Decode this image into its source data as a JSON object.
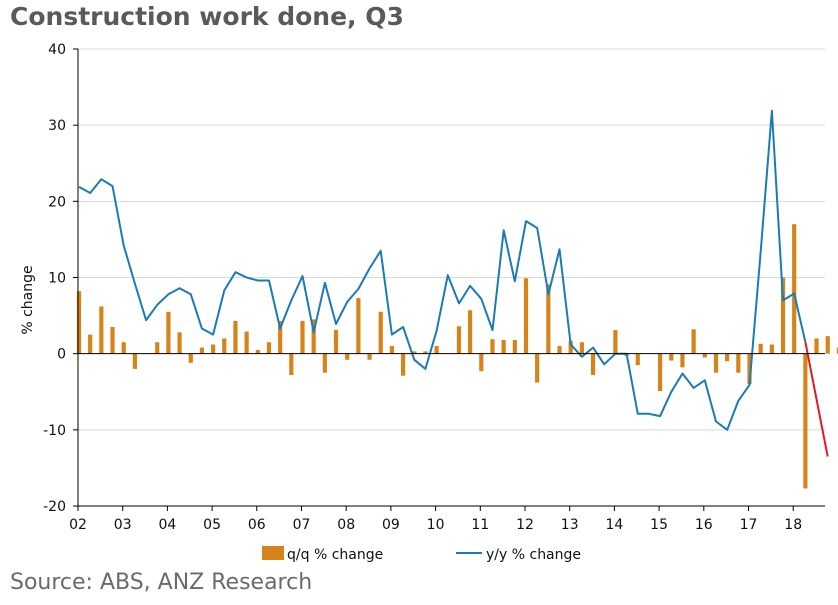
{
  "page": {
    "title": "Construction work done, Q3",
    "source": "Source: ABS, ANZ Research"
  },
  "colors": {
    "bars": "#d6841a",
    "line": "#1c7ab5",
    "projection": "#e11b22",
    "grid": "#d9d9d9",
    "axis": "#000000"
  },
  "chart_data": {
    "type": "bar",
    "title": "Construction work done, Q3",
    "xlabel": "",
    "ylabel": "% change",
    "ylim": [
      -20,
      40
    ],
    "yticks": [
      -20,
      -10,
      0,
      10,
      20,
      30,
      40
    ],
    "x_tick_labels": [
      "02",
      "03",
      "04",
      "05",
      "06",
      "07",
      "08",
      "09",
      "10",
      "11",
      "12",
      "13",
      "14",
      "15",
      "16",
      "17",
      "18"
    ],
    "x_start": 2002.0,
    "x_step": 0.25,
    "grid": true,
    "legend_position": "bottom",
    "series": [
      {
        "name": "q/q % change",
        "kind": "bar",
        "values": [
          8.2,
          2.5,
          6.2,
          3.5,
          1.5,
          -2.0,
          0,
          1.5,
          5.5,
          2.8,
          -1.2,
          0.8,
          1.2,
          2.0,
          4.3,
          2.9,
          0.5,
          1.5,
          4.3,
          -2.8,
          4.3,
          4.5,
          -2.5,
          3.1,
          -0.8,
          7.3,
          -0.8,
          5.5,
          1.0,
          -2.9,
          0.3,
          0.3,
          1.0,
          0,
          3.6,
          5.7,
          -2.3,
          1.9,
          1.8,
          1.8,
          9.9,
          -3.8,
          9.1,
          1.0,
          1.7,
          1.5,
          -2.8,
          0,
          3.1,
          -0.3,
          -1.5,
          0,
          -4.9,
          -0.9,
          -1.8,
          3.2,
          -0.5,
          -2.5,
          -1.0,
          -2.5,
          -4.0,
          1.3,
          1.2,
          10.0,
          17.0,
          -17.7,
          2.0,
          2.3,
          0.8
        ]
      },
      {
        "name": "y/y % change",
        "kind": "line",
        "values": [
          21.9,
          21.1,
          22.9,
          22.0,
          14.2,
          9.2,
          4.4,
          6.4,
          7.8,
          8.6,
          7.8,
          3.3,
          2.5,
          8.3,
          10.7,
          10.0,
          9.6,
          9.6,
          3.3,
          7.0,
          10.2,
          2.8,
          9.3,
          3.9,
          6.8,
          8.5,
          11.2,
          13.5,
          2.5,
          3.5,
          -0.8,
          -2.0,
          3.0,
          10.3,
          6.6,
          8.9,
          7.2,
          3.1,
          16.2,
          9.5,
          17.4,
          16.5,
          7.8,
          13.7,
          1.2,
          -0.4,
          0.8,
          -1.4,
          0,
          0,
          -7.9,
          -7.9,
          -8.2,
          -5.0,
          -2.6,
          -4.5,
          -3.5,
          -8.9,
          -10.0,
          -6.2,
          -4.1,
          13.4,
          31.9,
          7.0,
          7.9,
          1.5
        ]
      },
      {
        "name": "projection",
        "kind": "line",
        "start_index": 65,
        "values": [
          1.5,
          -13.5
        ]
      }
    ]
  }
}
